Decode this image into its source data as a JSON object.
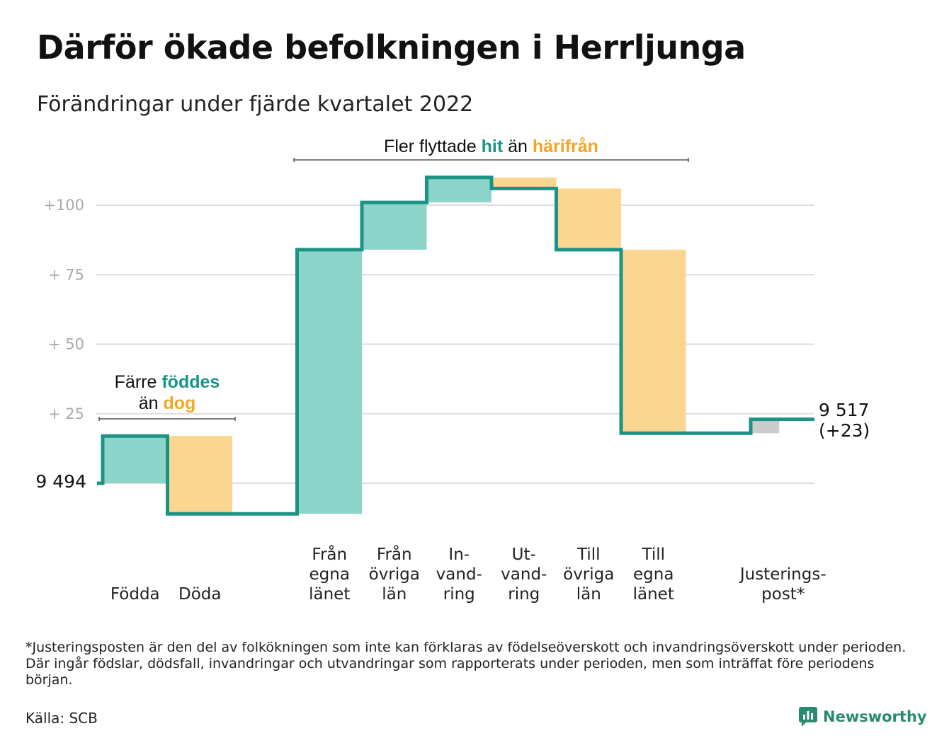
{
  "title": "Därför ökade befolkningen i Herrljunga",
  "subtitle": "Förändringar under fjärde kvartalet 2022",
  "footnote": "*Justeringsposten är den del av folkökningen som inte kan förklaras av födelseöverskott och invandringsöverskott under perioden. Där ingår födslar, dödsfall, invandringar och utvandringar som rapporterats under perioden, men som inträffat före periodens början.",
  "source": "Källa: SCB",
  "brand": "Newsworthy",
  "colors": {
    "increase": "#8dd5ca",
    "decrease": "#fad690",
    "adjustment": "#cccccc",
    "line": "#1a9585",
    "accent_green": "#1a9585",
    "accent_orange": "#f5a524",
    "grid": "#dddddd",
    "axis_text": "#aaaaaa"
  },
  "chart_data": {
    "type": "waterfall",
    "start": {
      "label": "9 494",
      "value": 9494
    },
    "end": {
      "label": "9 517",
      "change_label": "(+23)",
      "value": 9517
    },
    "yaxis": {
      "ticks": [
        "+ 25",
        "+ 50",
        "+ 75",
        "+100"
      ],
      "tick_values": [
        25,
        50,
        75,
        100
      ],
      "ylim": [
        -15,
        112
      ]
    },
    "steps": [
      {
        "label": [
          "Födda"
        ],
        "change": 17,
        "kind": "increase"
      },
      {
        "label": [
          "Döda"
        ],
        "change": -28,
        "kind": "decrease"
      },
      {
        "label": [],
        "change": 0,
        "kind": "none"
      },
      {
        "label": [
          "Från",
          "egna",
          "länet"
        ],
        "change": 95,
        "kind": "increase"
      },
      {
        "label": [
          "Från",
          "övriga",
          "län"
        ],
        "change": 17,
        "kind": "increase"
      },
      {
        "label": [
          "In-",
          "vand-",
          "ring"
        ],
        "change": 9,
        "kind": "increase"
      },
      {
        "label": [
          "Ut-",
          "vand-",
          "ring"
        ],
        "change": -4,
        "kind": "decrease"
      },
      {
        "label": [
          "Till",
          "övriga",
          "län"
        ],
        "change": -22,
        "kind": "decrease"
      },
      {
        "label": [
          "Till",
          "egna",
          "länet"
        ],
        "change": -66,
        "kind": "decrease"
      },
      {
        "label": [],
        "change": 0,
        "kind": "none"
      },
      {
        "label": [
          "Justerings-",
          "post*"
        ],
        "change": 5,
        "kind": "adjustment"
      }
    ],
    "annotations": [
      {
        "id": "born",
        "lines": [
          [
            {
              "text": "Färre ",
              "style": "plain"
            },
            {
              "text": "föddes",
              "style": "green"
            }
          ],
          [
            {
              "text": "än ",
              "style": "plain"
            },
            {
              "text": "dog",
              "style": "orange"
            }
          ]
        ],
        "span": [
          0,
          1
        ]
      },
      {
        "id": "moved",
        "lines": [
          [
            {
              "text": "Fler flyttade ",
              "style": "plain"
            },
            {
              "text": "hit",
              "style": "green"
            },
            {
              "text": " än ",
              "style": "plain"
            },
            {
              "text": "härifrån",
              "style": "orange"
            }
          ]
        ],
        "span": [
          3,
          8
        ]
      }
    ]
  }
}
